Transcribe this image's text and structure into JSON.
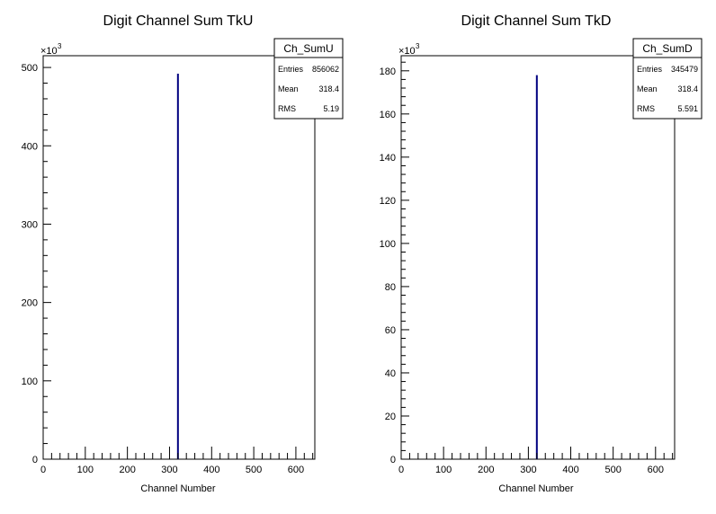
{
  "chart_data": [
    {
      "type": "bar",
      "title": "Digit Channel Sum TkU",
      "xlabel": "Channel Number",
      "ylabel": "",
      "xlim": [
        0,
        645
      ],
      "ylim": [
        0,
        515
      ],
      "x_ticks": [
        0,
        100,
        200,
        300,
        400,
        500,
        600
      ],
      "y_ticks": [
        0,
        100,
        200,
        300,
        400,
        500
      ],
      "y_multiplier_label": "×10",
      "y_multiplier_exp": "3",
      "bars": [
        {
          "x": 320,
          "value": 492
        }
      ],
      "color": "#000080",
      "stats": {
        "name": "Ch_SumU",
        "rows": [
          {
            "label": "Entries",
            "value": "856062"
          },
          {
            "label": "Mean",
            "value": "318.4"
          },
          {
            "label": "RMS",
            "value": "5.19"
          }
        ]
      }
    },
    {
      "type": "bar",
      "title": "Digit Channel Sum TkD",
      "xlabel": "Channel Number",
      "ylabel": "",
      "xlim": [
        0,
        645
      ],
      "ylim": [
        0,
        187
      ],
      "x_ticks": [
        0,
        100,
        200,
        300,
        400,
        500,
        600
      ],
      "y_ticks": [
        0,
        20,
        40,
        60,
        80,
        100,
        120,
        140,
        160,
        180
      ],
      "y_multiplier_label": "×10",
      "y_multiplier_exp": "3",
      "bars": [
        {
          "x": 320,
          "value": 178
        }
      ],
      "color": "#000080",
      "stats": {
        "name": "Ch_SumD",
        "rows": [
          {
            "label": "Entries",
            "value": "345479"
          },
          {
            "label": "Mean",
            "value": "318.4"
          },
          {
            "label": "RMS",
            "value": "5.591"
          }
        ]
      }
    }
  ]
}
